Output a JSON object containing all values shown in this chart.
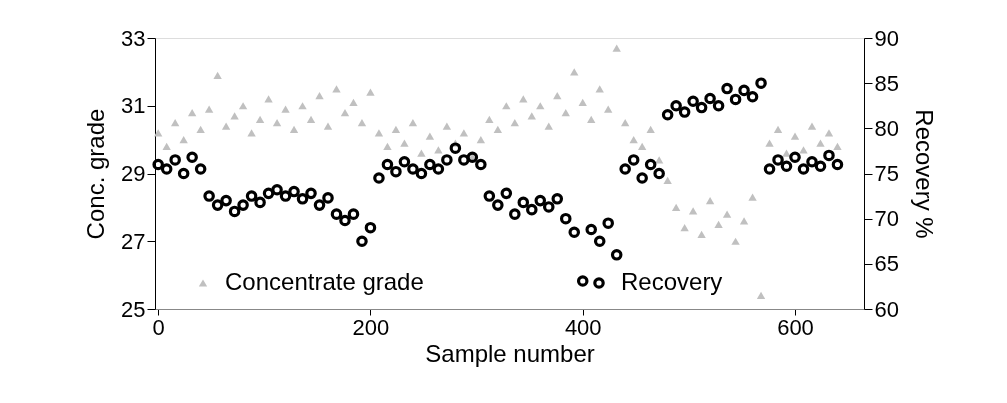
{
  "chart_data": {
    "type": "scatter",
    "xlabel": "Sample number",
    "ylabel": "Conc. grade",
    "y2label": "Recovery %",
    "x": [
      0,
      8,
      16,
      24,
      32,
      40,
      48,
      56,
      64,
      72,
      80,
      88,
      96,
      104,
      112,
      120,
      128,
      136,
      144,
      152,
      160,
      168,
      176,
      184,
      192,
      200,
      208,
      216,
      224,
      232,
      240,
      248,
      256,
      264,
      272,
      280,
      288,
      296,
      304,
      312,
      320,
      328,
      336,
      344,
      352,
      360,
      368,
      376,
      384,
      392,
      400,
      408,
      416,
      424,
      432,
      440,
      448,
      456,
      464,
      472,
      480,
      488,
      496,
      504,
      512,
      520,
      528,
      536,
      544,
      552,
      560,
      568,
      576,
      584,
      592,
      600,
      608,
      616,
      624,
      632,
      640
    ],
    "xlim": [
      -3,
      665
    ],
    "xticks": [
      0,
      200,
      400,
      600
    ],
    "ylim": [
      25,
      33
    ],
    "yticks": [
      25,
      27,
      29,
      31,
      33
    ],
    "y2lim": [
      60,
      90
    ],
    "y2ticks": [
      60,
      65,
      70,
      75,
      80,
      85,
      90
    ],
    "grid": false,
    "legend": "bottom",
    "series": [
      {
        "name": "Concentrate grade",
        "color": "#c0c0c0",
        "marker": "triangle",
        "values": [
          30.2,
          29.8,
          30.5,
          30.0,
          30.8,
          30.3,
          30.9,
          31.9,
          30.4,
          30.7,
          31.0,
          30.2,
          30.6,
          31.2,
          30.5,
          30.9,
          30.3,
          31.0,
          30.6,
          31.3,
          30.4,
          31.5,
          30.8,
          31.1,
          30.5,
          31.4,
          30.2,
          29.8,
          30.3,
          29.9,
          30.5,
          29.6,
          30.1,
          29.7,
          30.4,
          29.9,
          30.2,
          29.5,
          30.0,
          30.6,
          30.3,
          31.0,
          30.5,
          31.2,
          30.7,
          31.0,
          30.4,
          31.3,
          30.8,
          32.0,
          31.1,
          30.6,
          31.5,
          30.9,
          32.7,
          30.5,
          30.0,
          29.8,
          30.3,
          29.4,
          28.8,
          28.0,
          27.4,
          27.9,
          27.2,
          28.2,
          27.5,
          27.8,
          27.0,
          27.6,
          28.3,
          25.4,
          29.9,
          30.3,
          29.6,
          30.1,
          29.7,
          30.4,
          29.9,
          30.2,
          29.8
        ]
      },
      {
        "name": "Recovery",
        "color": "#000000",
        "marker": "circle",
        "axis": "y2",
        "values": [
          76,
          75.5,
          76.5,
          75,
          76.8,
          75.5,
          72.5,
          71.5,
          72,
          70.8,
          71.5,
          72.5,
          71.8,
          72.8,
          73.2,
          72.5,
          73,
          72.2,
          72.8,
          71.5,
          72.3,
          70.5,
          69.8,
          70.5,
          67.5,
          69,
          74.5,
          76,
          75.2,
          76.3,
          75.5,
          75,
          76,
          75.5,
          76.5,
          77.8,
          76.5,
          76.8,
          76,
          72.5,
          71.5,
          72.8,
          70.5,
          71.8,
          71,
          72,
          71.3,
          72.2,
          70,
          68.5,
          63.1,
          68.8,
          67.5,
          69.5,
          66,
          75.5,
          76.5,
          74.5,
          76,
          75,
          81.5,
          82.5,
          81.8,
          83,
          82.3,
          83.3,
          82.5,
          84.4,
          83.2,
          84.2,
          83.5,
          85,
          75.5,
          76.5,
          75.8,
          76.8,
          75.5,
          76.3,
          75.8,
          77,
          76
        ]
      }
    ]
  }
}
